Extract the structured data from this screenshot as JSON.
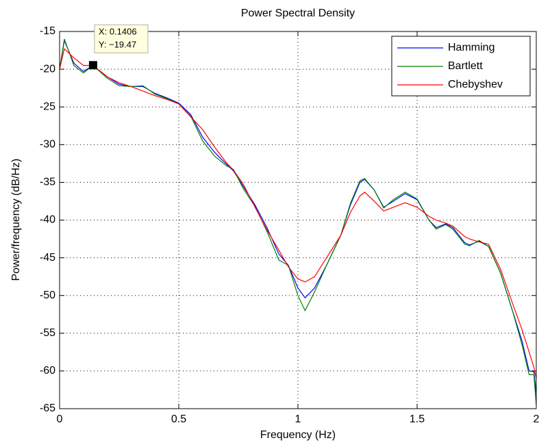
{
  "chart_data": {
    "type": "line",
    "title": "Power Spectral Density",
    "x_label": "Frequency (Hz)",
    "y_label": "Power/frequency (dB/Hz)",
    "x": [
      0,
      0.02,
      0.06,
      0.1,
      0.14,
      0.2,
      0.25,
      0.3,
      0.35,
      0.4,
      0.45,
      0.5,
      0.55,
      0.6,
      0.65,
      0.7,
      0.73,
      0.77,
      0.82,
      0.87,
      0.92,
      0.96,
      1.0,
      1.03,
      1.07,
      1.12,
      1.18,
      1.22,
      1.26,
      1.28,
      1.32,
      1.36,
      1.4,
      1.45,
      1.5,
      1.55,
      1.58,
      1.62,
      1.65,
      1.7,
      1.72,
      1.76,
      1.8,
      1.85,
      1.9,
      1.94,
      1.97,
      1.99,
      2.0
    ],
    "series": [
      {
        "name": "Hamming",
        "color": "#0000ff",
        "values": [
          -20,
          -16.2,
          -19.2,
          -20.3,
          -19.5,
          -21,
          -22,
          -22.3,
          -22.3,
          -23.2,
          -23.8,
          -24.5,
          -26,
          -29,
          -31,
          -32.6,
          -33.5,
          -35.5,
          -38,
          -41,
          -44.5,
          -46,
          -49,
          -50.3,
          -49,
          -46,
          -42,
          -38,
          -35,
          -34.6,
          -36,
          -38.3,
          -37.5,
          -36.5,
          -37.3,
          -40,
          -41,
          -40.5,
          -41,
          -43,
          -43.3,
          -42.8,
          -43.5,
          -47,
          -52,
          -56,
          -60,
          -60.1,
          -63
        ]
      },
      {
        "name": "Bartlett",
        "color": "#008000",
        "values": [
          -20,
          -16,
          -19.5,
          -20.5,
          -19.5,
          -21.2,
          -22.2,
          -22.3,
          -22.2,
          -23.3,
          -23.9,
          -24.6,
          -26.2,
          -29.5,
          -31.5,
          -32.8,
          -33.3,
          -35.8,
          -38.2,
          -41.5,
          -45.3,
          -46,
          -50,
          -52,
          -49.5,
          -46,
          -42,
          -37.8,
          -34.8,
          -34.5,
          -36,
          -38.4,
          -37.3,
          -36.3,
          -37.2,
          -40,
          -41.2,
          -40.6,
          -41.2,
          -43.2,
          -43.4,
          -42.7,
          -43.5,
          -47,
          -52,
          -56.5,
          -60.5,
          -60.5,
          -64.5
        ]
      },
      {
        "name": "Chebyshev",
        "color": "#ff0000",
        "values": [
          -20,
          -17.3,
          -18.5,
          -19.5,
          -19.5,
          -21,
          -21.8,
          -22.3,
          -22.9,
          -23.5,
          -24,
          -24.6,
          -26.3,
          -28,
          -30.3,
          -32.4,
          -33.4,
          -35.2,
          -38.3,
          -41.3,
          -44,
          -46.2,
          -47.8,
          -48.2,
          -47.5,
          -45,
          -42,
          -39,
          -36.8,
          -36.3,
          -37.5,
          -38.8,
          -38.3,
          -37.7,
          -38.3,
          -39.5,
          -40,
          -40.4,
          -40.8,
          -42.2,
          -42.5,
          -42.9,
          -43.2,
          -46.5,
          -51,
          -54.5,
          -57.5,
          -59.5,
          -61
        ]
      }
    ],
    "xlim": [
      0,
      2
    ],
    "xticks": [
      0,
      0.5,
      1,
      1.5,
      2
    ],
    "ylim": [
      -65,
      -15
    ],
    "yticks": [
      -65,
      -60,
      -55,
      -50,
      -45,
      -40,
      -35,
      -30,
      -25,
      -20,
      -15
    ],
    "grid": true,
    "legend": "top-right",
    "datatip": {
      "x": 0.1406,
      "y": -19.47,
      "lines": [
        "X: 0.1406",
        "Y: −19.47"
      ]
    }
  }
}
